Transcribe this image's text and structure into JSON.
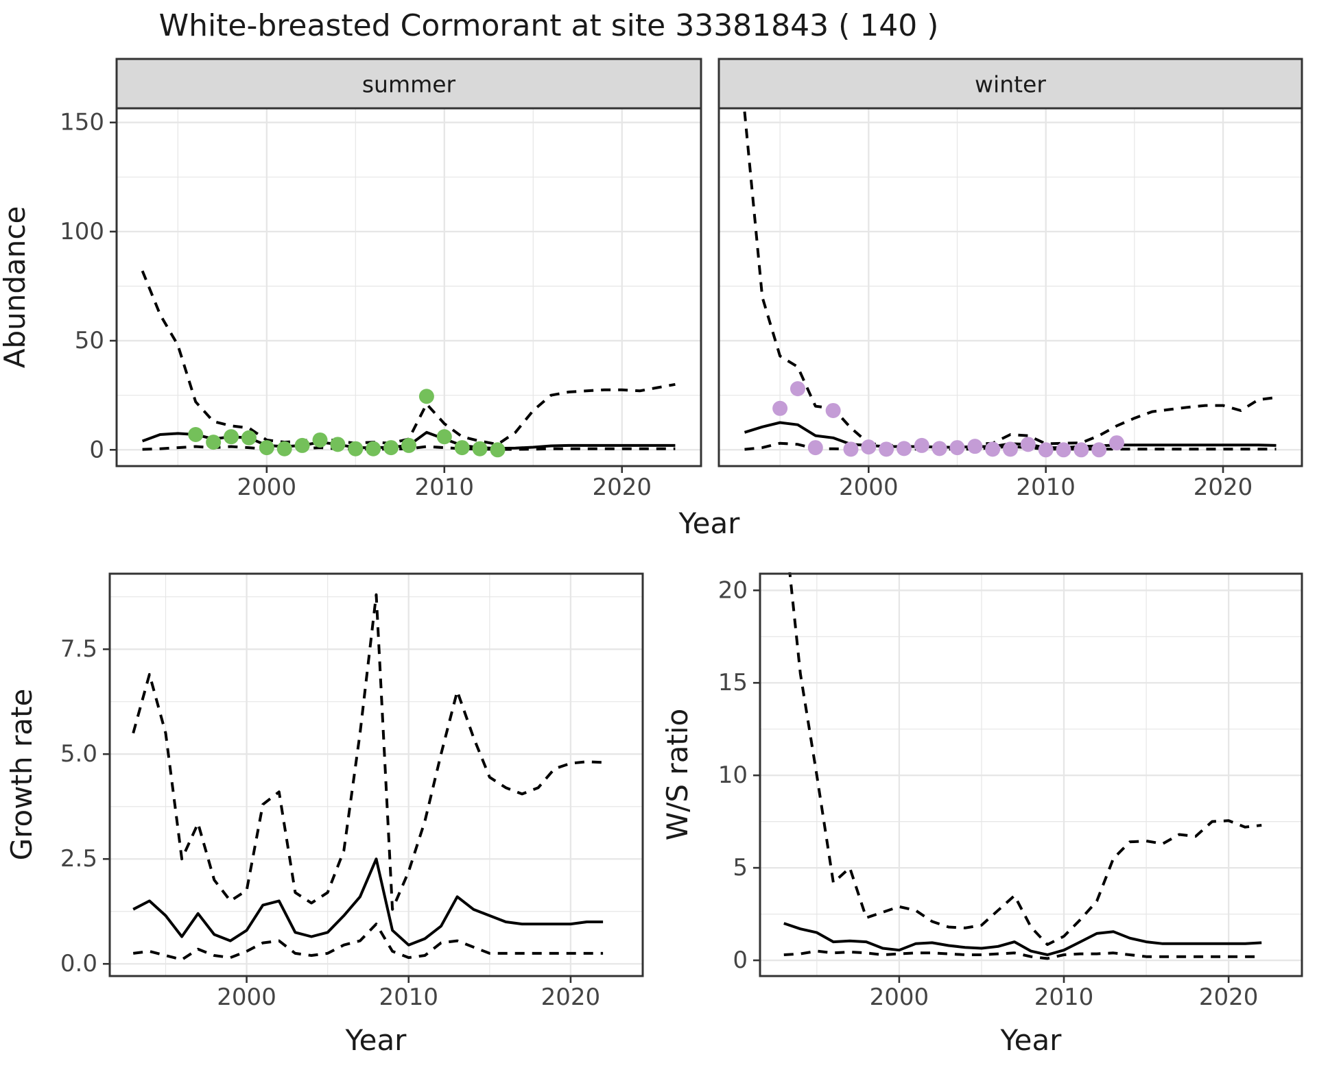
{
  "title": "White-breasted Cormorant at site 33381843 ( 140 )",
  "colors": {
    "summer_points": "#74C05A",
    "winter_points": "#C49CD6",
    "line": "#000000",
    "grid": "#E6E6E6",
    "panel_border": "#333333",
    "strip_fill": "#D9D9D9",
    "tick_text": "#444444",
    "text": "#1A1A1A",
    "background": "#FFFFFF"
  },
  "chart_data": [
    {
      "id": "abundance_summer",
      "type": "line",
      "facet_label": "summer",
      "xlabel": "Year",
      "ylabel": "Abundance",
      "xlim": [
        1991.55,
        2024.45
      ],
      "ylim": [
        -7.45,
        156.5
      ],
      "x_ticks": {
        "values": [
          2000,
          2010,
          2020
        ],
        "labels": [
          "2000",
          "2010",
          "2020"
        ]
      },
      "y_ticks": {
        "values": [
          0,
          50,
          100,
          150
        ],
        "labels": [
          "0",
          "50",
          "100",
          "150"
        ]
      },
      "x_minor": [
        1995,
        2005,
        2015
      ],
      "y_minor": [
        25,
        75,
        125
      ],
      "grid": "on",
      "legend_position": "none",
      "x": [
        1993,
        1994,
        1995,
        1996,
        1997,
        1998,
        1999,
        2000,
        2001,
        2002,
        2003,
        2004,
        2005,
        2006,
        2007,
        2008,
        2009,
        2010,
        2011,
        2012,
        2013,
        2014,
        2015,
        2016,
        2017,
        2018,
        2019,
        2020,
        2021,
        2022,
        2023
      ],
      "series": [
        {
          "name": "upper_ci",
          "style": "dashed",
          "y": [
            82,
            62,
            48,
            22,
            13,
            11,
            10,
            4.5,
            3.5,
            4,
            5.5,
            4,
            3,
            3.5,
            3,
            5,
            21,
            12,
            6,
            4,
            2.5,
            8,
            18,
            25,
            26.5,
            27,
            27.5,
            27.5,
            27,
            28.5,
            30
          ]
        },
        {
          "name": "median",
          "style": "solid",
          "y": [
            4,
            7,
            7.5,
            7,
            5,
            6,
            5.5,
            2,
            1.5,
            2,
            3.5,
            2.5,
            1,
            1,
            1.2,
            2,
            8,
            5,
            2,
            1,
            0.7,
            0.8,
            1.2,
            1.8,
            2,
            2,
            2,
            2,
            2,
            2,
            2
          ]
        },
        {
          "name": "lower_ci",
          "style": "dashed",
          "y": [
            0.2,
            0.5,
            1,
            1.5,
            1,
            1.5,
            1,
            0.3,
            0.3,
            0.5,
            1,
            0.5,
            0.3,
            0.3,
            0.3,
            0.5,
            1.5,
            1,
            0.5,
            0.3,
            0.2,
            0.2,
            0.3,
            0.5,
            0.5,
            0.5,
            0.5,
            0.5,
            0.5,
            0.5,
            0.5
          ]
        },
        {
          "name": "observations",
          "style": "points",
          "color_key": "summer_points",
          "x_obs": [
            1996,
            1997,
            1998,
            1999,
            2000,
            2001,
            2002,
            2003,
            2004,
            2005,
            2006,
            2007,
            2008,
            2009,
            2010,
            2011,
            2012,
            2013
          ],
          "y": [
            7,
            3.5,
            6,
            5.5,
            1,
            0.5,
            2,
            4.5,
            2.5,
            0.5,
            0.5,
            1,
            2,
            24.5,
            6,
            1,
            0.5,
            0
          ]
        }
      ]
    },
    {
      "id": "abundance_winter",
      "type": "line",
      "facet_label": "winter",
      "xlabel": "",
      "ylabel": "",
      "xlim": [
        1991.55,
        2024.45
      ],
      "ylim": [
        -7.45,
        156.5
      ],
      "x_ticks": {
        "values": [
          2000,
          2010,
          2020
        ],
        "labels": [
          "2000",
          "2010",
          "2020"
        ]
      },
      "y_ticks": {
        "values": [
          0,
          50,
          100,
          150
        ],
        "labels": [
          "0",
          "50",
          "100",
          "150"
        ]
      },
      "x_minor": [
        1995,
        2005,
        2015
      ],
      "y_minor": [
        25,
        75,
        125
      ],
      "grid": "on",
      "legend_position": "none",
      "x": [
        1993,
        1994,
        1995,
        1996,
        1997,
        1998,
        1999,
        2000,
        2001,
        2002,
        2003,
        2004,
        2005,
        2006,
        2007,
        2008,
        2009,
        2010,
        2011,
        2012,
        2013,
        2014,
        2015,
        2016,
        2017,
        2018,
        2019,
        2020,
        2021,
        2022,
        2023
      ],
      "series": [
        {
          "name": "upper_ci",
          "style": "dashed",
          "y": [
            155,
            70,
            43,
            38,
            20,
            19,
            10,
            3,
            2,
            2,
            2.5,
            2,
            2,
            2.5,
            3,
            7,
            6.5,
            2.8,
            3,
            3.2,
            6.5,
            11,
            14.5,
            17.5,
            18.5,
            19.5,
            20.3,
            20.3,
            18,
            23,
            24
          ]
        },
        {
          "name": "median",
          "style": "solid",
          "y": [
            8,
            10.5,
            12.5,
            11.5,
            6.5,
            5.5,
            2.5,
            2,
            1.5,
            1.5,
            1.5,
            1.2,
            1.2,
            1.5,
            1.5,
            2.8,
            2.5,
            1,
            1,
            1.5,
            1.8,
            2.2,
            2.2,
            2.2,
            2.2,
            2.2,
            2.2,
            2.2,
            2.2,
            2.2,
            2
          ]
        },
        {
          "name": "lower_ci",
          "style": "dashed",
          "y": [
            0.2,
            1,
            3,
            2.5,
            0.5,
            0.5,
            0.3,
            0.3,
            0.3,
            0.3,
            0.3,
            0.3,
            0.3,
            0.3,
            1,
            1.5,
            1,
            0.3,
            0.3,
            0.3,
            0.3,
            0.3,
            0.3,
            0.3,
            0.3,
            0.3,
            0.3,
            0.3,
            0.3,
            0.3,
            0.3
          ]
        },
        {
          "name": "observations",
          "style": "points",
          "color_key": "winter_points",
          "x_obs": [
            1995,
            1996,
            1997,
            1998,
            1999,
            2000,
            2001,
            2002,
            2003,
            2004,
            2005,
            2006,
            2007,
            2008,
            2009,
            2010,
            2011,
            2012,
            2013,
            2014
          ],
          "y": [
            19,
            28,
            1,
            18,
            0.3,
            1.3,
            0.3,
            0.6,
            2,
            0.6,
            1,
            1.6,
            0.3,
            0.3,
            2.5,
            0,
            0,
            0,
            0,
            3.2
          ]
        }
      ]
    },
    {
      "id": "growth_rate",
      "type": "line",
      "facet_label": "",
      "xlabel": "Year",
      "ylabel": "Growth rate",
      "xlim": [
        1991.55,
        2024.45
      ],
      "ylim": [
        -0.29,
        9.3
      ],
      "x_ticks": {
        "values": [
          2000,
          2010,
          2020
        ],
        "labels": [
          "2000",
          "2010",
          "2020"
        ]
      },
      "y_ticks": {
        "values": [
          0,
          2.5,
          5,
          7.5
        ],
        "labels": [
          "0.0",
          "2.5",
          "5.0",
          "7.5"
        ]
      },
      "x_minor": [
        1995,
        2005,
        2015
      ],
      "y_minor": [
        1.25,
        3.75,
        6.25,
        8.75
      ],
      "grid": "on",
      "legend_position": "none",
      "x": [
        1993,
        1994,
        1995,
        1996,
        1997,
        1998,
        1999,
        2000,
        2001,
        2002,
        2003,
        2004,
        2005,
        2006,
        2007,
        2008,
        2009,
        2010,
        2011,
        2012,
        2013,
        2014,
        2015,
        2016,
        2017,
        2018,
        2019,
        2020,
        2021,
        2022
      ],
      "series": [
        {
          "name": "upper_ci",
          "style": "dashed",
          "y": [
            5.5,
            6.9,
            5.5,
            2.5,
            3.35,
            2.0,
            1.5,
            1.75,
            3.8,
            4.1,
            1.7,
            1.45,
            1.7,
            2.7,
            5.5,
            8.8,
            1.3,
            2.2,
            3.4,
            5.0,
            6.5,
            5.4,
            4.45,
            4.2,
            4.05,
            4.2,
            4.65,
            4.78,
            4.82,
            4.8
          ]
        },
        {
          "name": "median",
          "style": "solid",
          "y": [
            1.3,
            1.5,
            1.15,
            0.65,
            1.2,
            0.7,
            0.55,
            0.8,
            1.4,
            1.5,
            0.75,
            0.65,
            0.75,
            1.15,
            1.6,
            2.5,
            0.8,
            0.45,
            0.6,
            0.9,
            1.6,
            1.3,
            1.15,
            1.0,
            0.95,
            0.95,
            0.95,
            0.95,
            1.0,
            1.0
          ]
        },
        {
          "name": "lower_ci",
          "style": "dashed",
          "y": [
            0.25,
            0.3,
            0.2,
            0.1,
            0.35,
            0.2,
            0.15,
            0.3,
            0.5,
            0.55,
            0.25,
            0.2,
            0.25,
            0.45,
            0.55,
            0.95,
            0.3,
            0.15,
            0.2,
            0.5,
            0.55,
            0.4,
            0.25,
            0.25,
            0.25,
            0.25,
            0.25,
            0.25,
            0.25,
            0.25
          ]
        }
      ]
    },
    {
      "id": "ws_ratio",
      "type": "line",
      "facet_label": "",
      "xlabel": "Year",
      "ylabel": "W/S ratio",
      "xlim": [
        1991.55,
        2024.45
      ],
      "ylim": [
        -0.85,
        20.9
      ],
      "x_ticks": {
        "values": [
          2000,
          2010,
          2020
        ],
        "labels": [
          "2000",
          "2010",
          "2020"
        ]
      },
      "y_ticks": {
        "values": [
          0,
          5,
          10,
          15,
          20
        ],
        "labels": [
          "0",
          "5",
          "10",
          "15",
          "20"
        ]
      },
      "x_minor": [
        1995,
        2005,
        2015
      ],
      "y_minor": [
        2.5,
        7.5,
        12.5,
        17.5
      ],
      "grid": "on",
      "legend_position": "none",
      "x": [
        1993,
        1994,
        1995,
        1996,
        1997,
        1998,
        1999,
        2000,
        2001,
        2002,
        2003,
        2004,
        2005,
        2006,
        2007,
        2008,
        2009,
        2010,
        2011,
        2012,
        2013,
        2014,
        2015,
        2016,
        2017,
        2018,
        2019,
        2020,
        2021,
        2022
      ],
      "series": [
        {
          "name": "upper_ci",
          "style": "dashed",
          "y": [
            24,
            15.5,
            10,
            4.2,
            5.0,
            2.3,
            2.6,
            2.9,
            2.7,
            2.1,
            1.8,
            1.75,
            1.9,
            2.7,
            3.5,
            1.8,
            0.85,
            1.3,
            2.2,
            3.2,
            5.5,
            6.4,
            6.45,
            6.3,
            6.8,
            6.7,
            7.5,
            7.55,
            7.2,
            7.3
          ]
        },
        {
          "name": "median",
          "style": "solid",
          "y": [
            2.0,
            1.7,
            1.5,
            1.0,
            1.05,
            1.0,
            0.65,
            0.55,
            0.9,
            0.95,
            0.8,
            0.7,
            0.65,
            0.75,
            1.0,
            0.5,
            0.3,
            0.55,
            1.0,
            1.45,
            1.55,
            1.2,
            1.0,
            0.9,
            0.9,
            0.9,
            0.9,
            0.9,
            0.9,
            0.95
          ]
        },
        {
          "name": "lower_ci",
          "style": "dashed",
          "y": [
            0.3,
            0.35,
            0.5,
            0.4,
            0.45,
            0.4,
            0.3,
            0.35,
            0.4,
            0.4,
            0.35,
            0.3,
            0.3,
            0.35,
            0.4,
            0.2,
            0.1,
            0.3,
            0.35,
            0.35,
            0.4,
            0.3,
            0.2,
            0.2,
            0.2,
            0.2,
            0.2,
            0.2,
            0.2,
            0.2
          ]
        }
      ]
    }
  ]
}
